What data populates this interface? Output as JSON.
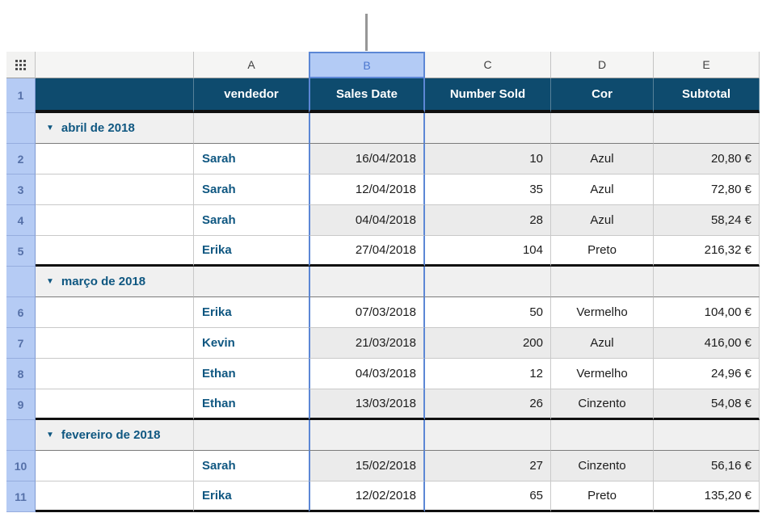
{
  "colors": {
    "header_bg": "#0E4B6E",
    "header_text": "#FFFFFF",
    "rail_bg": "#B5CBF4",
    "rail_text": "#5570A8",
    "selection_blue": "#5C87D5",
    "selected_column_header_bg": "#B3CBF5",
    "selected_column_letter": "#4B77CF",
    "accent_text_blue": "#0F5781",
    "category_row_bg": "#F0F0F0",
    "shaded_cell_bg": "#EBEBEB",
    "grid_line": "#C9C9C9",
    "group_divider": "#101010",
    "callout_line": "#979797"
  },
  "icons": {
    "drag_handle": "grid-of-dots",
    "disclosure_glyph": "▼"
  },
  "column_bar": {
    "letters": [
      "A",
      "B",
      "C",
      "D",
      "E"
    ],
    "selected_letter": "B"
  },
  "table": {
    "header": {
      "row_number": "1",
      "columns": [
        "vendedor",
        "Sales Date",
        "Number Sold",
        "Cor",
        "Subtotal"
      ]
    },
    "groups": [
      {
        "label": "abril de 2018",
        "rows": [
          {
            "num": "2",
            "vendedor": "Sarah",
            "sales_date": "16/04/2018",
            "number_sold": "10",
            "cor": "Azul",
            "subtotal": "20,80 €",
            "shaded": true
          },
          {
            "num": "3",
            "vendedor": "Sarah",
            "sales_date": "12/04/2018",
            "number_sold": "35",
            "cor": "Azul",
            "subtotal": "72,80 €",
            "shaded": false
          },
          {
            "num": "4",
            "vendedor": "Sarah",
            "sales_date": "04/04/2018",
            "number_sold": "28",
            "cor": "Azul",
            "subtotal": "58,24 €",
            "shaded": true
          },
          {
            "num": "5",
            "vendedor": "Erika",
            "sales_date": "27/04/2018",
            "number_sold": "104",
            "cor": "Preto",
            "subtotal": "216,32 €",
            "shaded": false
          }
        ]
      },
      {
        "label": "março de 2018",
        "rows": [
          {
            "num": "6",
            "vendedor": "Erika",
            "sales_date": "07/03/2018",
            "number_sold": "50",
            "cor": "Vermelho",
            "subtotal": "104,00 €",
            "shaded": false
          },
          {
            "num": "7",
            "vendedor": "Kevin",
            "sales_date": "21/03/2018",
            "number_sold": "200",
            "cor": "Azul",
            "subtotal": "416,00 €",
            "shaded": true
          },
          {
            "num": "8",
            "vendedor": "Ethan",
            "sales_date": "04/03/2018",
            "number_sold": "12",
            "cor": "Vermelho",
            "subtotal": "24,96 €",
            "shaded": false
          },
          {
            "num": "9",
            "vendedor": "Ethan",
            "sales_date": "13/03/2018",
            "number_sold": "26",
            "cor": "Cinzento",
            "subtotal": "54,08 €",
            "shaded": true
          }
        ]
      },
      {
        "label": "fevereiro de 2018",
        "rows": [
          {
            "num": "10",
            "vendedor": "Sarah",
            "sales_date": "15/02/2018",
            "number_sold": "27",
            "cor": "Cinzento",
            "subtotal": "56,16 €",
            "shaded": true
          },
          {
            "num": "11",
            "vendedor": "Erika",
            "sales_date": "12/02/2018",
            "number_sold": "65",
            "cor": "Preto",
            "subtotal": "135,20 €",
            "shaded": false
          }
        ]
      }
    ]
  }
}
